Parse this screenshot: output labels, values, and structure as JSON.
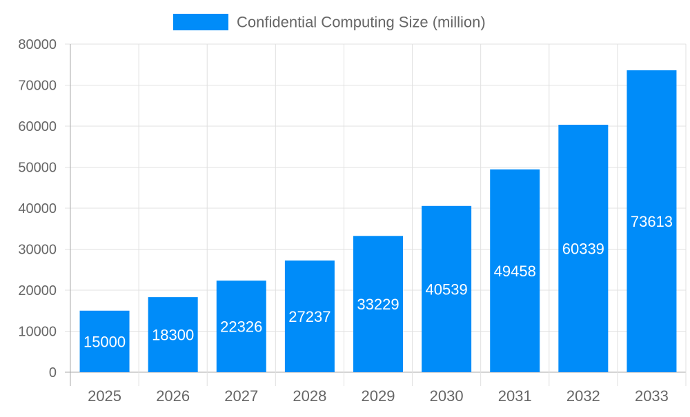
{
  "chart_data": {
    "type": "bar",
    "title": "",
    "xlabel": "",
    "ylabel": "",
    "categories": [
      "2025",
      "2026",
      "2027",
      "2028",
      "2029",
      "2030",
      "2031",
      "2032",
      "2033"
    ],
    "series": [
      {
        "name": "Confidential Computing Size (million)",
        "values": [
          15000,
          18300,
          22326,
          27237,
          33229,
          40539,
          49458,
          60339,
          73613
        ],
        "color": "#008cf9"
      }
    ],
    "ylim": [
      0,
      80000
    ],
    "yticks": [
      0,
      10000,
      20000,
      30000,
      40000,
      50000,
      60000,
      70000,
      80000
    ],
    "grid": true,
    "legend": "top-center",
    "data_labels": true
  }
}
